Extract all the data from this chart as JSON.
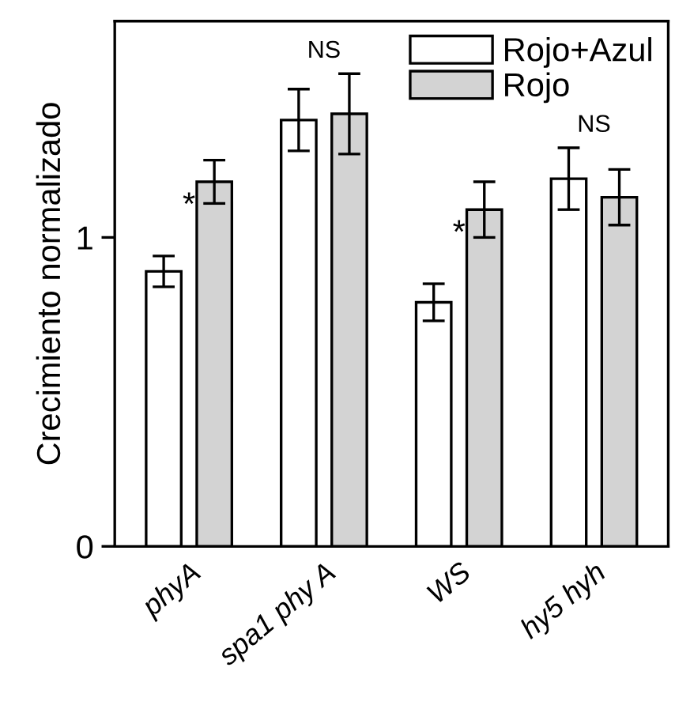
{
  "chart_data": {
    "type": "bar",
    "ylabel": "Crecimiento normalizado",
    "categories": [
      "phyA",
      "spa1 phy A",
      "WS",
      "hy5 hyh"
    ],
    "series": [
      {
        "name": "Rojo+Azul",
        "color": "#ffffff",
        "values": [
          0.89,
          1.38,
          0.79,
          1.19
        ],
        "errors": [
          0.05,
          0.1,
          0.06,
          0.1
        ]
      },
      {
        "name": "Rojo",
        "color": "#d3d3d3",
        "values": [
          1.18,
          1.4,
          1.09,
          1.13
        ],
        "errors": [
          0.07,
          0.13,
          0.09,
          0.09
        ]
      }
    ],
    "ylim": [
      0,
      1.7
    ],
    "yticks": [
      0,
      1
    ],
    "grid": false,
    "legend": "top right",
    "annotations": [
      {
        "text": "*",
        "x": "phyA",
        "y": 1.1
      },
      "NS",
      {
        "text": "*",
        "x": "WS",
        "y": 1.01
      },
      "NS"
    ]
  }
}
